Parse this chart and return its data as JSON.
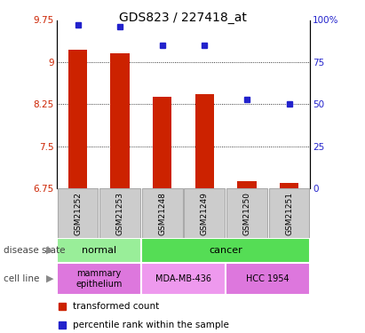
{
  "title": "GDS823 / 227418_at",
  "samples": [
    "GSM21252",
    "GSM21253",
    "GSM21248",
    "GSM21249",
    "GSM21250",
    "GSM21251"
  ],
  "bar_values": [
    9.22,
    9.15,
    8.38,
    8.42,
    6.88,
    6.85
  ],
  "dot_values": [
    97,
    96,
    85,
    85,
    53,
    50
  ],
  "ylim_left": [
    6.75,
    9.75
  ],
  "ylim_right": [
    0,
    100
  ],
  "yticks_left": [
    6.75,
    7.5,
    8.25,
    9.0,
    9.75
  ],
  "ytick_labels_left": [
    "6.75",
    "7.5",
    "8.25",
    "9",
    "9.75"
  ],
  "yticks_right": [
    0,
    25,
    50,
    75,
    100
  ],
  "ytick_labels_right": [
    "0",
    "25",
    "50",
    "75",
    "100%"
  ],
  "bar_color": "#cc2200",
  "dot_color": "#2222cc",
  "disease_state_normal": "normal",
  "disease_state_cancer": "cancer",
  "cell_line_mammary": "mammary\nepithelium",
  "cell_line_mda": "MDA-MB-436",
  "cell_line_hcc": "HCC 1954",
  "normal_color": "#99ee99",
  "cancer_color": "#55dd55",
  "cell_mammary_color": "#dd77dd",
  "cell_mda_color": "#ee99ee",
  "cell_hcc_color": "#dd77dd",
  "label_disease": "disease state",
  "label_cell": "cell line",
  "legend_bar": "transformed count",
  "legend_dot": "percentile rank within the sample",
  "base_value": 6.75,
  "sample_box_color": "#cccccc",
  "sample_box_edge": "#aaaaaa"
}
